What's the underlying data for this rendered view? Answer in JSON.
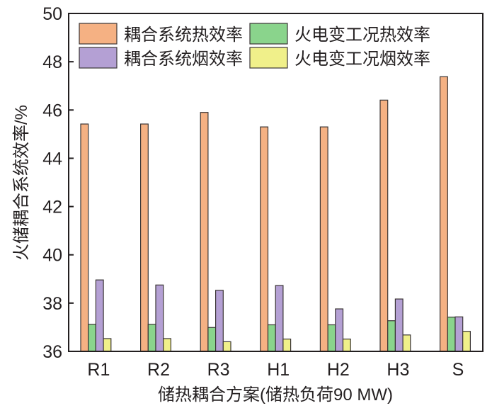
{
  "chart_data": {
    "type": "bar",
    "title": "",
    "xlabel": "储热耦合方案(储热负荷90 MW)",
    "ylabel": "火储耦合系统效率/%",
    "ylim": [
      36,
      50
    ],
    "yticks": [
      "36",
      "38",
      "40",
      "42",
      "44",
      "46",
      "48",
      "50"
    ],
    "categories": [
      "R1",
      "R2",
      "R3",
      "H1",
      "H2",
      "H3",
      "S"
    ],
    "legend_placement": "top",
    "grid": false,
    "series": [
      {
        "name": "耦合系统热效率",
        "color": "#F5B183",
        "values": [
          45.42,
          45.42,
          45.9,
          45.3,
          45.3,
          46.41,
          47.38
        ]
      },
      {
        "name": "火电变工况热效率",
        "color": "#8AD48C",
        "values": [
          37.12,
          37.12,
          36.99,
          37.1,
          37.1,
          37.27,
          37.42
        ]
      },
      {
        "name": "耦合系统烟效率",
        "color": "#B4A0D4",
        "values": [
          38.96,
          38.75,
          38.53,
          38.73,
          37.76,
          38.17,
          37.43
        ]
      },
      {
        "name": "火电变工况烟效率",
        "color": "#F0F08A",
        "values": [
          36.53,
          36.53,
          36.4,
          36.51,
          36.51,
          36.68,
          36.83
        ]
      }
    ]
  }
}
